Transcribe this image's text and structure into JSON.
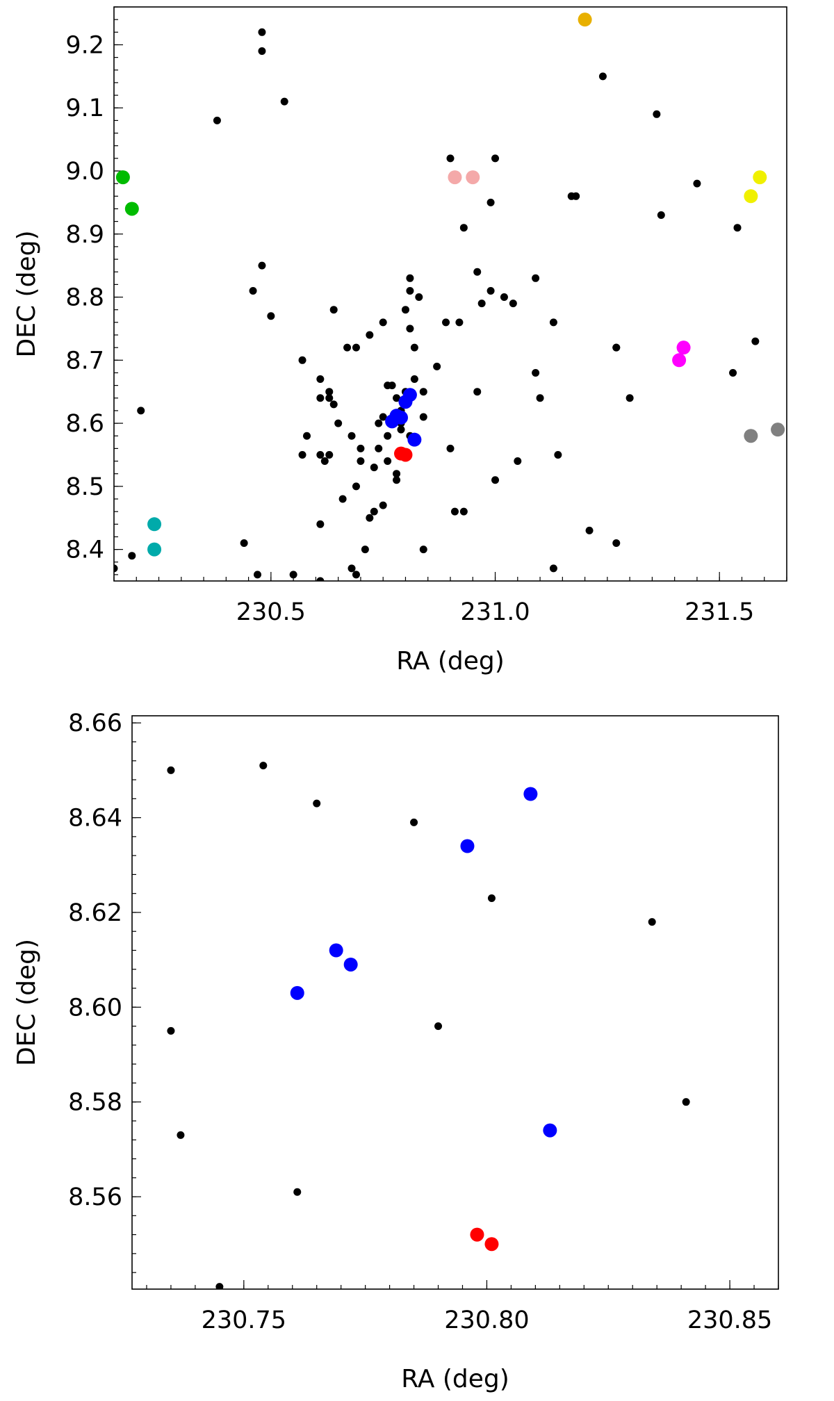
{
  "chart_data": [
    {
      "id": "overview",
      "type": "scatter",
      "xlabel": "RA (deg)",
      "ylabel": "DEC (deg)",
      "xlim": [
        230.15,
        231.65
      ],
      "ylim": [
        8.35,
        9.26
      ],
      "xticks": [
        230.5,
        231.0,
        231.5
      ],
      "xtick_labels": [
        "230.5",
        "231.0",
        "231.5"
      ],
      "yticks": [
        8.4,
        8.5,
        8.6,
        8.7,
        8.8,
        8.9,
        9.0,
        9.1,
        9.2
      ],
      "ytick_labels": [
        "8.4",
        "8.5",
        "8.6",
        "8.7",
        "8.8",
        "8.9",
        "9.0",
        "9.1",
        "9.2"
      ],
      "grid": false,
      "series": [
        {
          "color": "#000000",
          "size": "small",
          "x": [
            230.48,
            230.48,
            230.53,
            230.38,
            230.15,
            230.21,
            230.19,
            230.44,
            230.46,
            230.48,
            230.5,
            230.57,
            230.58,
            230.61,
            230.62,
            230.63,
            230.63,
            230.64,
            230.61,
            230.61,
            230.63,
            230.64,
            230.67,
            230.65,
            230.68,
            230.7,
            230.69,
            230.72,
            230.7,
            230.73,
            230.74,
            230.75,
            230.74,
            230.76,
            230.77,
            230.78,
            230.79,
            230.8,
            230.8,
            230.79,
            230.79,
            230.78,
            230.78,
            230.76,
            230.75,
            230.73,
            230.71,
            230.69,
            230.68,
            230.66,
            230.61,
            230.55,
            230.57,
            230.72,
            230.81,
            230.81,
            230.8,
            230.81,
            230.83,
            230.82,
            230.84,
            230.81,
            230.82,
            230.84,
            230.87,
            230.89,
            230.9,
            230.92,
            230.93,
            230.96,
            230.97,
            230.99,
            231.0,
            231.02,
            231.04,
            231.05,
            231.09,
            231.13,
            231.09,
            231.1,
            231.14,
            231.18,
            231.21,
            231.0,
            230.93,
            230.91,
            230.84,
            231.13,
            231.17,
            231.24,
            231.27,
            231.27,
            231.3,
            231.36,
            231.37,
            231.45,
            231.54,
            231.53,
            231.58,
            230.9,
            231.27,
            230.99,
            230.96,
            230.69,
            230.61,
            230.47,
            230.75,
            230.76
          ],
          "y": [
            9.22,
            9.19,
            9.11,
            9.08,
            8.37,
            8.62,
            8.39,
            8.41,
            8.81,
            8.85,
            8.77,
            8.7,
            8.58,
            8.55,
            8.54,
            8.55,
            8.64,
            8.63,
            8.64,
            8.67,
            8.65,
            8.78,
            8.72,
            8.6,
            8.58,
            8.54,
            8.5,
            8.45,
            8.56,
            8.53,
            8.6,
            8.61,
            8.56,
            8.58,
            8.66,
            8.64,
            8.6,
            8.65,
            8.63,
            8.62,
            8.59,
            8.52,
            8.51,
            8.54,
            8.47,
            8.46,
            8.4,
            8.36,
            8.37,
            8.48,
            8.44,
            8.36,
            8.55,
            8.74,
            8.81,
            8.83,
            8.78,
            8.75,
            8.8,
            8.72,
            8.61,
            8.58,
            8.67,
            8.65,
            8.69,
            8.76,
            9.02,
            8.76,
            8.91,
            8.84,
            8.79,
            8.81,
            9.02,
            8.8,
            8.79,
            8.54,
            8.68,
            8.76,
            8.83,
            8.64,
            8.55,
            8.96,
            8.43,
            8.51,
            8.46,
            8.46,
            8.4,
            8.37,
            8.96,
            9.15,
            8.72,
            8.41,
            8.64,
            9.09,
            8.93,
            8.98,
            8.91,
            8.68,
            8.73,
            8.56,
            8.72,
            8.95,
            8.65,
            8.72,
            8.35,
            8.36,
            8.76,
            8.66
          ]
        },
        {
          "color": "#0000ff",
          "size": "large",
          "x": [
            230.77,
            230.78,
            230.79,
            230.8,
            230.81,
            230.82
          ],
          "y": [
            8.603,
            8.612,
            8.609,
            8.634,
            8.645,
            8.574
          ]
        },
        {
          "color": "#ff0000",
          "size": "large",
          "x": [
            230.79,
            230.8
          ],
          "y": [
            8.552,
            8.55
          ]
        },
        {
          "color": "#00bb00",
          "size": "large",
          "x": [
            230.17,
            230.19
          ],
          "y": [
            8.99,
            8.94
          ]
        },
        {
          "color": "#00aaaa",
          "size": "large",
          "x": [
            230.24,
            230.24
          ],
          "y": [
            8.44,
            8.4
          ]
        },
        {
          "color": "#f4a9a9",
          "size": "large",
          "x": [
            230.91,
            230.95
          ],
          "y": [
            8.99,
            8.99
          ]
        },
        {
          "color": "#e8b000",
          "size": "large",
          "x": [
            231.2
          ],
          "y": [
            9.24
          ]
        },
        {
          "color": "#f0f000",
          "size": "large",
          "x": [
            231.57,
            231.59
          ],
          "y": [
            8.96,
            8.99
          ]
        },
        {
          "color": "#ff00ff",
          "size": "large",
          "x": [
            231.41,
            231.42
          ],
          "y": [
            8.7,
            8.72
          ]
        },
        {
          "color": "#808080",
          "size": "large",
          "x": [
            231.57,
            231.63
          ],
          "y": [
            8.58,
            8.59
          ]
        }
      ]
    },
    {
      "id": "zoom",
      "type": "scatter",
      "xlabel": "RA (deg)",
      "ylabel": "DEC (deg)",
      "xlim": [
        230.727,
        230.86
      ],
      "ylim": [
        8.5405,
        8.6615
      ],
      "xticks": [
        230.75,
        230.8,
        230.85
      ],
      "xtick_labels": [
        "230.75",
        "230.80",
        "230.85"
      ],
      "yticks": [
        8.56,
        8.58,
        8.6,
        8.62,
        8.64,
        8.66
      ],
      "ytick_labels": [
        "8.56",
        "8.58",
        "8.60",
        "8.62",
        "8.64",
        "8.66"
      ],
      "grid": false,
      "series": [
        {
          "color": "#000000",
          "size": "small",
          "x": [
            230.735,
            230.754,
            230.765,
            230.785,
            230.801,
            230.834,
            230.735,
            230.79,
            230.737,
            230.761,
            230.745,
            230.841
          ],
          "y": [
            8.65,
            8.651,
            8.643,
            8.639,
            8.623,
            8.618,
            8.595,
            8.596,
            8.573,
            8.561,
            8.541,
            8.58
          ]
        },
        {
          "color": "#0000ff",
          "size": "large",
          "x": [
            230.809,
            230.796,
            230.769,
            230.772,
            230.761,
            230.813
          ],
          "y": [
            8.645,
            8.634,
            8.612,
            8.609,
            8.603,
            8.574
          ]
        },
        {
          "color": "#ff0000",
          "size": "large",
          "x": [
            230.798,
            230.801
          ],
          "y": [
            8.552,
            8.55
          ]
        }
      ]
    }
  ]
}
